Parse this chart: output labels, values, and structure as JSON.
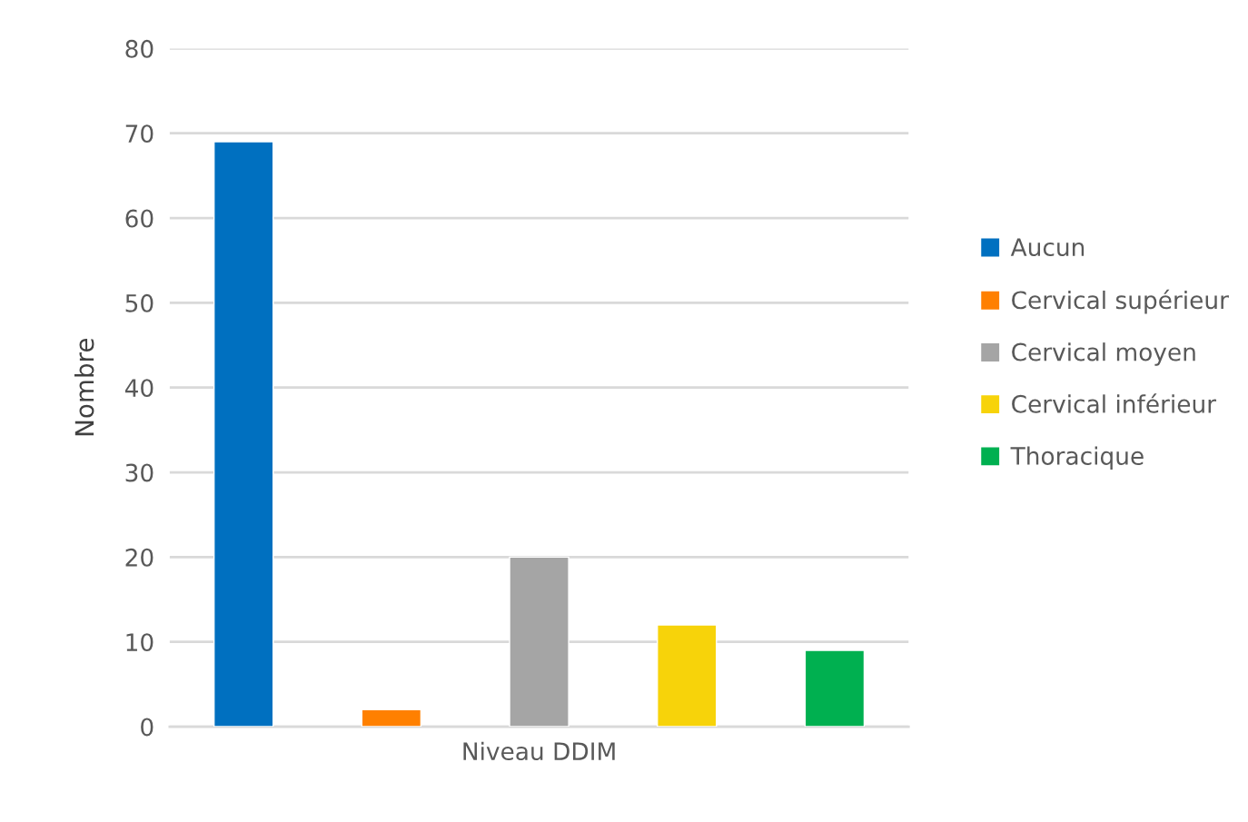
{
  "chart_data": {
    "type": "bar",
    "categories": [
      "Niveau DDIM"
    ],
    "ylabel": "Nombre",
    "series": [
      {
        "name": "Aucun",
        "color": "#0070c0",
        "values": [
          69
        ]
      },
      {
        "name": "Cervical supérieur",
        "color": "#ff8000",
        "values": [
          2
        ]
      },
      {
        "name": "Cervical moyen",
        "color": "#a5a5a5",
        "values": [
          20
        ]
      },
      {
        "name": "Cervical inférieur",
        "color": "#f7d30a",
        "values": [
          12
        ]
      },
      {
        "name": "Thoracique",
        "color": "#00b050",
        "values": [
          9
        ]
      }
    ],
    "ylim": [
      0,
      80
    ],
    "yticks": [
      0,
      10,
      20,
      30,
      40,
      50,
      60,
      70,
      80
    ],
    "grid": "y",
    "legend": "right"
  }
}
